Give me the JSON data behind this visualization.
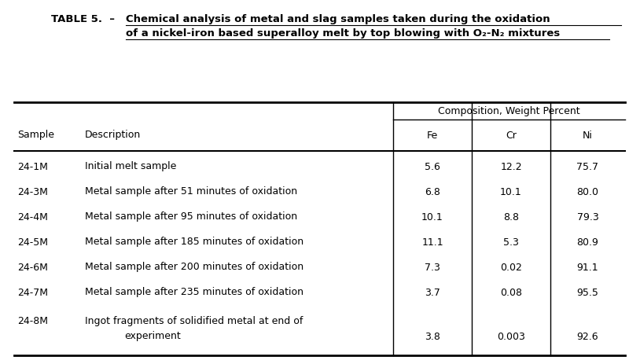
{
  "title_prefix": "TABLE 5.  –  ",
  "title_line1": "Chemical analysis of metal and slag samples taken during the oxidation",
  "title_line2": "of a nickel-iron based superalloy melt by top blowing with O₂-N₂ mixtures",
  "col_headers": [
    "Sample",
    "Description",
    "Fe",
    "Cr",
    "Ni"
  ],
  "composition_header": "Composition, Weight Percent",
  "rows": [
    [
      "24-1M",
      "Initial melt sample",
      "5.6",
      "12.2",
      "75.7"
    ],
    [
      "24-3M",
      "Metal sample after 51 minutes of oxidation",
      "6.8",
      "10.1",
      "80.0"
    ],
    [
      "24-4M",
      "Metal sample after 95 minutes of oxidation",
      "10.1",
      "8.8",
      "79.3"
    ],
    [
      "24-5M",
      "Metal sample after 185 minutes of oxidation",
      "11.1",
      "5.3",
      "80.9"
    ],
    [
      "24-6M",
      "Metal sample after 200 minutes of oxidation",
      "7.3",
      "0.02",
      "91.1"
    ],
    [
      "24-7M",
      "Metal sample after 235 minutes of oxidation",
      "3.7",
      "0.08",
      "95.5"
    ],
    [
      "24-8M",
      "Ingot fragments of solidified metal at end of\nexperiment",
      "3.8",
      "0.003",
      "92.6"
    ]
  ],
  "bg_color": "#ffffff",
  "text_color": "#000000",
  "font_size": 9.0,
  "title_font_size": 9.5
}
